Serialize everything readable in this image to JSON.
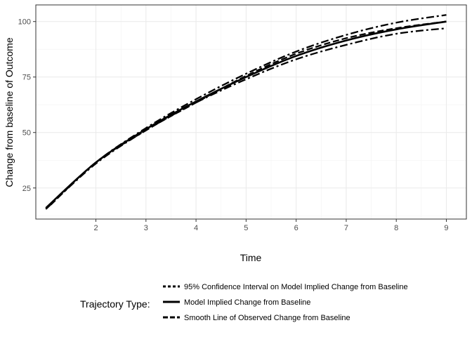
{
  "chart_data": {
    "type": "line",
    "xlabel": "Time",
    "ylabel": "Change from baseline of Outcome",
    "xlim": [
      0.8,
      9.4
    ],
    "ylim": [
      11,
      107.5
    ],
    "x_ticks": [
      2,
      3,
      4,
      5,
      6,
      7,
      8,
      9
    ],
    "x_tick_labels": [
      "2",
      "3",
      "4",
      "5",
      "6",
      "7",
      "8",
      "9"
    ],
    "y_ticks": [
      25,
      50,
      75,
      100
    ],
    "y_tick_labels": [
      "25",
      "50",
      "75",
      "100"
    ],
    "grid": true,
    "legend": {
      "title": "Trajectory Type:",
      "placement": "bottom"
    },
    "series": [
      {
        "name": "95% Confidence Interval on Model Implied Change from Baseline",
        "style": "dotted",
        "x": [
          1,
          2,
          3,
          4,
          5,
          6,
          7,
          8,
          9
        ],
        "y": [
          15.5,
          36.5,
          52,
          65,
          76.5,
          86.5,
          94,
          99.5,
          103
        ]
      },
      {
        "style": "dotted",
        "x": [
          1,
          2,
          3,
          4,
          5,
          6,
          7,
          8,
          9
        ],
        "y": [
          15.5,
          36,
          51,
          63.5,
          74,
          83,
          89.5,
          94.5,
          97
        ]
      },
      {
        "name": "Model Implied Change from Baseline",
        "style": "solid",
        "x": [
          1,
          2,
          3,
          4,
          5,
          6,
          7,
          8,
          9
        ],
        "y": [
          16,
          36.5,
          51.5,
          64,
          75,
          84.5,
          91.5,
          96.5,
          100
        ]
      },
      {
        "name": "Smooth Line of Observed Change from Baseline",
        "style": "dashed",
        "x": [
          1.1,
          2,
          3,
          4,
          5,
          6,
          7,
          8,
          9
        ],
        "y": [
          17.5,
          36.5,
          51,
          63.5,
          75.5,
          85.5,
          92.5,
          97,
          100
        ]
      }
    ]
  }
}
